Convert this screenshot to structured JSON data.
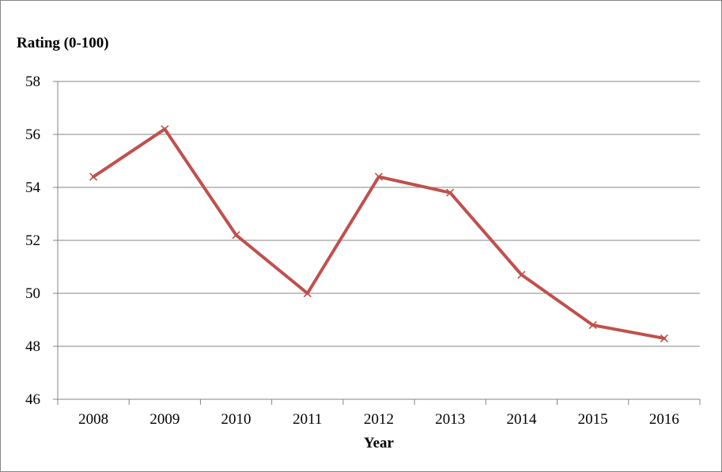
{
  "chart_data": {
    "type": "line",
    "title": "",
    "xlabel": "Year",
    "ylabel": "Rating (0-100)",
    "categories": [
      "2008",
      "2009",
      "2010",
      "2011",
      "2012",
      "2013",
      "2014",
      "2015",
      "2016"
    ],
    "series": [
      {
        "values": [
          54.4,
          56.2,
          52.2,
          50.0,
          54.4,
          53.8,
          50.7,
          48.8,
          48.3
        ],
        "color": "#C0504D",
        "marker": "x"
      }
    ],
    "ylim": [
      46,
      58
    ],
    "yticks": [
      46,
      48,
      50,
      52,
      54,
      56,
      58
    ],
    "ytick_labels": [
      "46",
      "48",
      "50",
      "52",
      "54",
      "56",
      "58"
    ],
    "grid": true,
    "legend": "none"
  },
  "colors": {
    "gridline": "#868686",
    "axis": "#868686",
    "series": "#C0504D"
  }
}
